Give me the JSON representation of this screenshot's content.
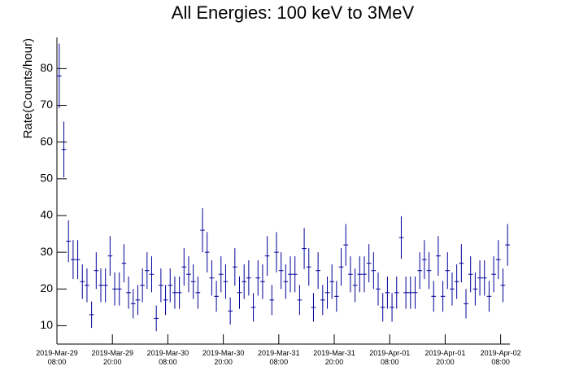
{
  "chart_data": {
    "type": "histogram",
    "title": "All Energies:  100 keV to 3MeV",
    "y_label": "Rate(Counts/hour)",
    "color": "#000099",
    "bins": [
      0,
      1,
      2,
      3,
      4,
      5,
      6,
      7,
      8,
      9,
      10,
      11,
      12,
      13,
      14,
      15,
      16,
      17,
      18,
      19,
      20,
      21,
      22,
      23,
      24,
      25,
      26,
      27,
      28,
      29,
      30,
      31,
      32,
      33,
      34,
      35,
      36,
      37,
      38,
      39,
      40,
      41,
      42,
      43,
      44,
      45,
      46,
      47,
      48,
      49,
      50,
      51,
      52,
      53,
      54,
      55,
      56,
      57,
      58,
      59,
      60,
      61,
      62,
      63,
      64,
      65,
      66,
      67,
      68,
      69,
      70,
      71,
      72,
      73,
      74,
      75,
      76,
      77,
      78,
      79,
      80,
      81,
      82,
      83,
      84,
      85,
      86,
      87,
      88,
      89,
      90,
      91,
      92,
      93,
      94,
      95,
      96,
      97,
      98
    ],
    "values": [
      78,
      58,
      33,
      28,
      28,
      22,
      21,
      13,
      25,
      21,
      21,
      29,
      20,
      20,
      27,
      19,
      16,
      17,
      21,
      25,
      24,
      12,
      21,
      17,
      21,
      19,
      19,
      26,
      24,
      22,
      19,
      36,
      30,
      23,
      18,
      24,
      22,
      14,
      26,
      19,
      22,
      23,
      15,
      23,
      22,
      29,
      17,
      30,
      25,
      22,
      24,
      24,
      17,
      31,
      26,
      15,
      25,
      17,
      19,
      22,
      18,
      26,
      32,
      24,
      21,
      24,
      24,
      27,
      25,
      20,
      15,
      19,
      15,
      19,
      34,
      19,
      19,
      19,
      25,
      28,
      25,
      18,
      29,
      18,
      25,
      20,
      22,
      27,
      16,
      24,
      20,
      23,
      23,
      18,
      24,
      28,
      21,
      32
    ],
    "errors": [
      8.8,
      7.6,
      5.7,
      5.3,
      5.3,
      4.7,
      4.6,
      3.6,
      5,
      4.6,
      4.6,
      5.4,
      4.5,
      4.5,
      5.2,
      4.4,
      4,
      4.1,
      4.6,
      5,
      4.9,
      3.5,
      4.6,
      4.1,
      4.6,
      4.4,
      4.4,
      5.1,
      4.9,
      4.7,
      4.4,
      6,
      5.5,
      4.8,
      4.2,
      4.9,
      4.7,
      3.7,
      5.1,
      4.4,
      4.7,
      4.8,
      3.9,
      4.8,
      4.7,
      5.4,
      4.1,
      5.5,
      5,
      4.7,
      4.9,
      4.9,
      4.1,
      5.6,
      5.1,
      3.9,
      5,
      4.1,
      4.4,
      4.7,
      4.2,
      5.1,
      5.7,
      4.9,
      4.6,
      4.9,
      4.9,
      5.2,
      5,
      4.5,
      3.9,
      4.4,
      3.9,
      4.4,
      5.8,
      4.4,
      4.4,
      4.4,
      5,
      5.3,
      5,
      4.2,
      5.4,
      4.2,
      5,
      4.5,
      4.7,
      5.2,
      4,
      4.9,
      4.5,
      4.8,
      4.8,
      4.2,
      4.9,
      5.3,
      4.6,
      5.7
    ],
    "xlim": [
      0,
      98
    ],
    "xticks": [
      {
        "value": 0,
        "label": "2019-Mar-29\n08:00"
      },
      {
        "value": 12,
        "label": "2019-Mar-29\n20:00"
      },
      {
        "value": 24,
        "label": "2019-Mar-30\n08:00"
      },
      {
        "value": 36,
        "label": "2019-Mar-30\n20:00"
      },
      {
        "value": 48,
        "label": "2019-Mar-31\n08:00"
      },
      {
        "value": 60,
        "label": "2019-Mar-31\n20:00"
      },
      {
        "value": 72,
        "label": "2019-Apr-01\n08:00"
      },
      {
        "value": 84,
        "label": "2019-Apr-01\n20:00"
      },
      {
        "value": 96,
        "label": "2019-Apr-02\n08:00"
      }
    ],
    "ylim": [
      5,
      88.5
    ],
    "yticks": [
      10,
      20,
      30,
      40,
      50,
      60,
      70,
      80
    ]
  }
}
